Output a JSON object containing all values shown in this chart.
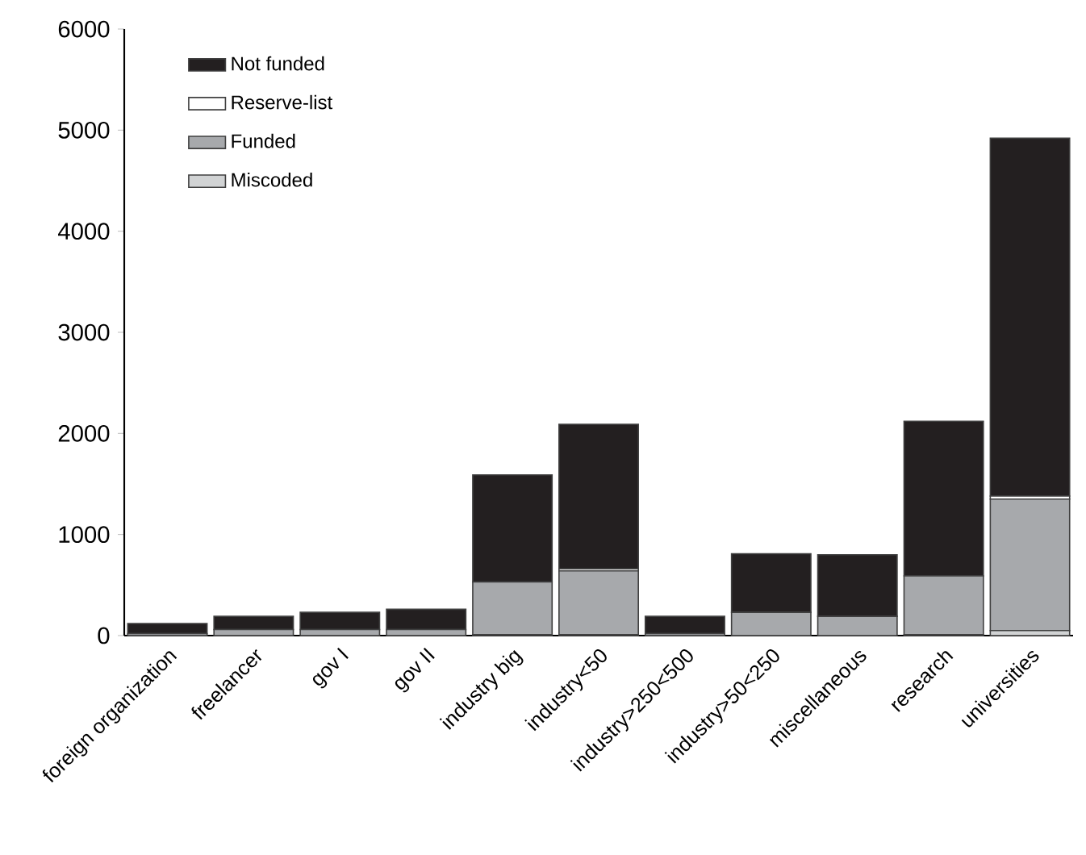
{
  "chart_data": {
    "type": "bar",
    "stacked": true,
    "categories": [
      "foreign organization",
      "freelancer",
      "gov I",
      "gov II",
      "industry big",
      "industry<50",
      "industry>250<500",
      "industry>50<250",
      "miscellaneous",
      "research",
      "universities"
    ],
    "series": [
      {
        "name": "Miscoded",
        "color": "#d1d3d4",
        "values": [
          0,
          0,
          0,
          0,
          10,
          10,
          0,
          0,
          0,
          10,
          50
        ]
      },
      {
        "name": "Funded",
        "color": "#a7a9ac",
        "values": [
          20,
          60,
          60,
          60,
          520,
          630,
          20,
          230,
          190,
          580,
          1300
        ]
      },
      {
        "name": "Reserve-list",
        "color": "#ffffff",
        "values": [
          0,
          0,
          0,
          0,
          0,
          20,
          0,
          0,
          0,
          0,
          30
        ]
      },
      {
        "name": "Not funded",
        "color": "#231f20",
        "values": [
          100,
          130,
          170,
          200,
          1060,
          1430,
          170,
          580,
          610,
          1530,
          3540
        ]
      }
    ],
    "ylim": [
      0,
      6000
    ],
    "yticks": [
      0,
      1000,
      2000,
      3000,
      4000,
      5000,
      6000
    ],
    "legend": "top left",
    "grid": false
  }
}
